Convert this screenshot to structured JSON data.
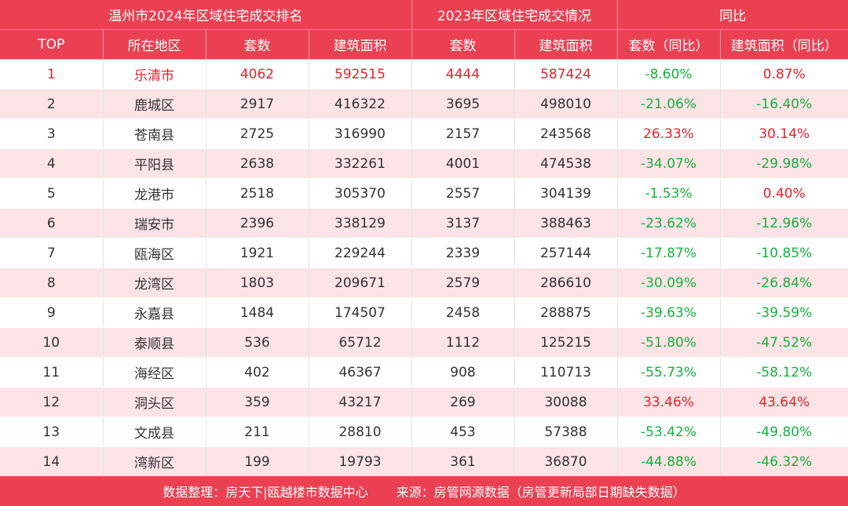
{
  "header": {
    "group1": "温州市2024年区域住宅成交排名",
    "group2": "2023年区域住宅成交情况",
    "group3": "同比",
    "col_rank": "TOP",
    "col_area": "所在地区",
    "col_units_2024": "套数",
    "col_floor_2024": "建筑面积",
    "col_units_2023": "套数",
    "col_floor_2023": "建筑面积",
    "col_units_yoy": "套数（同比）",
    "col_floor_yoy": "建筑面积（同比）"
  },
  "chart_data": {
    "type": "table",
    "columns": [
      "TOP",
      "所在地区",
      "套数",
      "建筑面积",
      "套数",
      "建筑面积",
      "套数（同比）",
      "建筑面积（同比）"
    ],
    "rows": [
      {
        "rank": "1",
        "area": "乐清市",
        "units_2024": "4062",
        "floor_2024": "592515",
        "units_2023": "4444",
        "floor_2023": "587424",
        "units_yoy": "-8.60%",
        "floor_yoy": "0.87%"
      },
      {
        "rank": "2",
        "area": "鹿城区",
        "units_2024": "2917",
        "floor_2024": "416322",
        "units_2023": "3695",
        "floor_2023": "498010",
        "units_yoy": "-21.06%",
        "floor_yoy": "-16.40%"
      },
      {
        "rank": "3",
        "area": "苍南县",
        "units_2024": "2725",
        "floor_2024": "316990",
        "units_2023": "2157",
        "floor_2023": "243568",
        "units_yoy": "26.33%",
        "floor_yoy": "30.14%"
      },
      {
        "rank": "4",
        "area": "平阳县",
        "units_2024": "2638",
        "floor_2024": "332261",
        "units_2023": "4001",
        "floor_2023": "474538",
        "units_yoy": "-34.07%",
        "floor_yoy": "-29.98%"
      },
      {
        "rank": "5",
        "area": "龙港市",
        "units_2024": "2518",
        "floor_2024": "305370",
        "units_2023": "2557",
        "floor_2023": "304139",
        "units_yoy": "-1.53%",
        "floor_yoy": "0.40%"
      },
      {
        "rank": "6",
        "area": "瑞安市",
        "units_2024": "2396",
        "floor_2024": "338129",
        "units_2023": "3137",
        "floor_2023": "388463",
        "units_yoy": "-23.62%",
        "floor_yoy": "-12.96%"
      },
      {
        "rank": "7",
        "area": "瓯海区",
        "units_2024": "1921",
        "floor_2024": "229244",
        "units_2023": "2339",
        "floor_2023": "257144",
        "units_yoy": "-17.87%",
        "floor_yoy": "-10.85%"
      },
      {
        "rank": "8",
        "area": "龙湾区",
        "units_2024": "1803",
        "floor_2024": "209671",
        "units_2023": "2579",
        "floor_2023": "286610",
        "units_yoy": "-30.09%",
        "floor_yoy": "-26.84%"
      },
      {
        "rank": "9",
        "area": "永嘉县",
        "units_2024": "1484",
        "floor_2024": "174507",
        "units_2023": "2458",
        "floor_2023": "288875",
        "units_yoy": "-39.63%",
        "floor_yoy": "-39.59%"
      },
      {
        "rank": "10",
        "area": "泰顺县",
        "units_2024": "536",
        "floor_2024": "65712",
        "units_2023": "1112",
        "floor_2023": "125215",
        "units_yoy": "-51.80%",
        "floor_yoy": "-47.52%"
      },
      {
        "rank": "11",
        "area": "海经区",
        "units_2024": "402",
        "floor_2024": "46367",
        "units_2023": "908",
        "floor_2023": "110713",
        "units_yoy": "-55.73%",
        "floor_yoy": "-58.12%"
      },
      {
        "rank": "12",
        "area": "洞头区",
        "units_2024": "359",
        "floor_2024": "43217",
        "units_2023": "269",
        "floor_2023": "30088",
        "units_yoy": "33.46%",
        "floor_yoy": "43.64%"
      },
      {
        "rank": "13",
        "area": "文成县",
        "units_2024": "211",
        "floor_2024": "28810",
        "units_2023": "453",
        "floor_2023": "57388",
        "units_yoy": "-53.42%",
        "floor_yoy": "-49.80%"
      },
      {
        "rank": "14",
        "area": "湾新区",
        "units_2024": "199",
        "floor_2024": "19793",
        "units_2023": "361",
        "floor_2023": "36870",
        "units_yoy": "-44.88%",
        "floor_yoy": "-46.32%"
      }
    ]
  },
  "footer": {
    "compiled": "数据整理：房天下|瓯越楼市数据中心",
    "source": "来源：房管网源数据（房管更新局部日期缺失数据）"
  },
  "colors": {
    "header_bg": "#ea4052",
    "stripe": "#fbe3e6",
    "increase": "#e8202c",
    "decrease": "#15b23c"
  }
}
